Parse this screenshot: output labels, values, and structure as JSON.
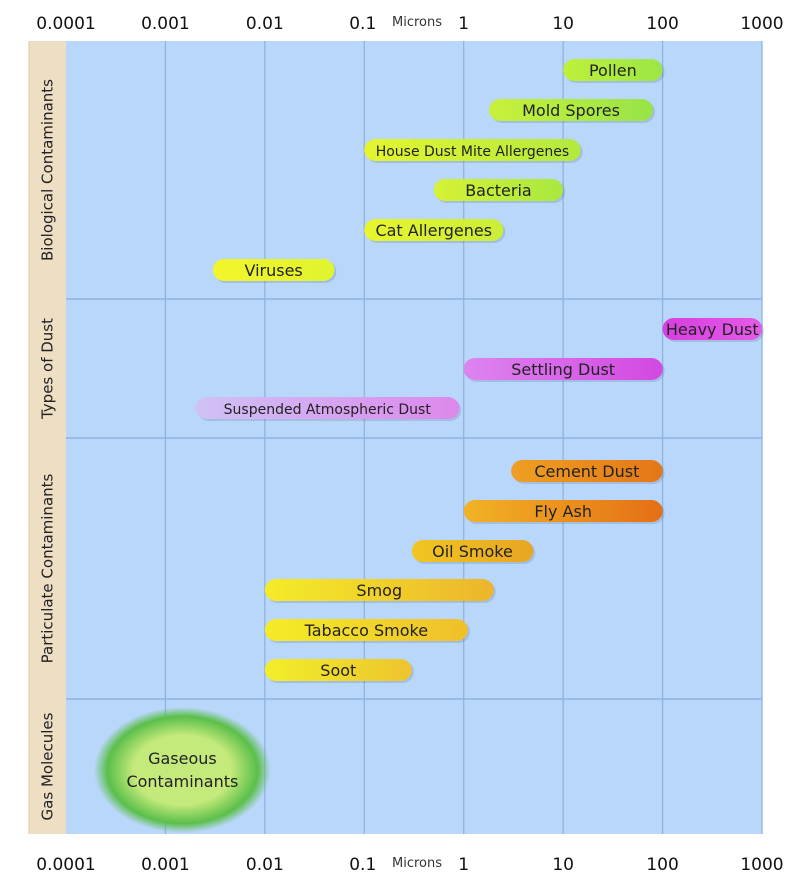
{
  "chart_data": {
    "type": "range-bar",
    "axis": {
      "scale": "log",
      "unit_label": "Microns",
      "xlim": [
        0.0001,
        1000
      ],
      "ticks": [
        {
          "value": 0.0001,
          "label": "0.0001"
        },
        {
          "value": 0.001,
          "label": "0.001"
        },
        {
          "value": 0.01,
          "label": "0.01"
        },
        {
          "value": 0.1,
          "label": "0.1"
        },
        {
          "value": 1,
          "label": "1"
        },
        {
          "value": 10,
          "label": "10"
        },
        {
          "value": 100,
          "label": "100"
        },
        {
          "value": 1000,
          "label": "1000"
        }
      ],
      "grid": true
    },
    "colors": {
      "plot_background": "#b9d7fa",
      "category_band": "#eedfc4",
      "gridline": "#8fb3e0"
    },
    "groups": [
      {
        "name": "Biological Contaminants",
        "items": [
          {
            "label": "Pollen",
            "min": 10,
            "max": 100,
            "color_start": "#bef03a",
            "color_end": "#9be646"
          },
          {
            "label": "Mold Spores",
            "min": 1.8,
            "max": 80,
            "color_start": "#c8f03a",
            "color_end": "#98e448"
          },
          {
            "label": "House Dust Mite Allergenes",
            "min": 0.1,
            "max": 15,
            "color_start": "#e4f52f",
            "color_end": "#b2ea3e"
          },
          {
            "label": "Bacteria",
            "min": 0.5,
            "max": 10,
            "color_start": "#d6f235",
            "color_end": "#a8e840"
          },
          {
            "label": "Cat Allergenes",
            "min": 0.1,
            "max": 2.5,
            "color_start": "#e8f52d",
            "color_end": "#caee38"
          },
          {
            "label": "Viruses",
            "min": 0.003,
            "max": 0.05,
            "color_start": "#f2f52a",
            "color_end": "#e0f430"
          }
        ]
      },
      {
        "name": "Types of Dust",
        "items": [
          {
            "label": "Heavy Dust",
            "min": 100,
            "max": 1000,
            "color_start": "#d63fe0",
            "color_end": "#e55ae8"
          },
          {
            "label": "Settling Dust",
            "min": 1,
            "max": 100,
            "color_start": "#dd84f0",
            "color_end": "#d348e2"
          },
          {
            "label": "Suspended Atmospheric Dust",
            "min": 0.002,
            "max": 0.9,
            "color_start": "#cfc2f5",
            "color_end": "#dd88ec"
          }
        ]
      },
      {
        "name": "Particulate Contaminants",
        "items": [
          {
            "label": "Cement Dust",
            "min": 3,
            "max": 100,
            "color_start": "#ee9f22",
            "color_end": "#e47718"
          },
          {
            "label": "Fly Ash",
            "min": 1,
            "max": 100,
            "color_start": "#f2b325",
            "color_end": "#e46f16"
          },
          {
            "label": "Oil Smoke",
            "min": 0.3,
            "max": 5,
            "color_start": "#f0c622",
            "color_end": "#e8a522"
          },
          {
            "label": "Smog",
            "min": 0.01,
            "max": 2,
            "color_start": "#f4ec28",
            "color_end": "#edb52c"
          },
          {
            "label": "Tabacco Smoke",
            "min": 0.01,
            "max": 1.1,
            "color_start": "#f4ec28",
            "color_end": "#efbf2a"
          },
          {
            "label": "Soot",
            "min": 0.01,
            "max": 0.3,
            "color_start": "#f2ee2a",
            "color_end": "#edc42e"
          }
        ]
      },
      {
        "name": "Gas Molecules",
        "items": [
          {
            "label": "Gaseous Contaminants",
            "label_lines": [
              "Gaseous",
              "Contaminants"
            ],
            "min": 0.0002,
            "max": 0.01,
            "shape": "ellipse",
            "color_start": "#c5ea7c",
            "color_end": "#5bbf4a"
          }
        ]
      }
    ]
  }
}
